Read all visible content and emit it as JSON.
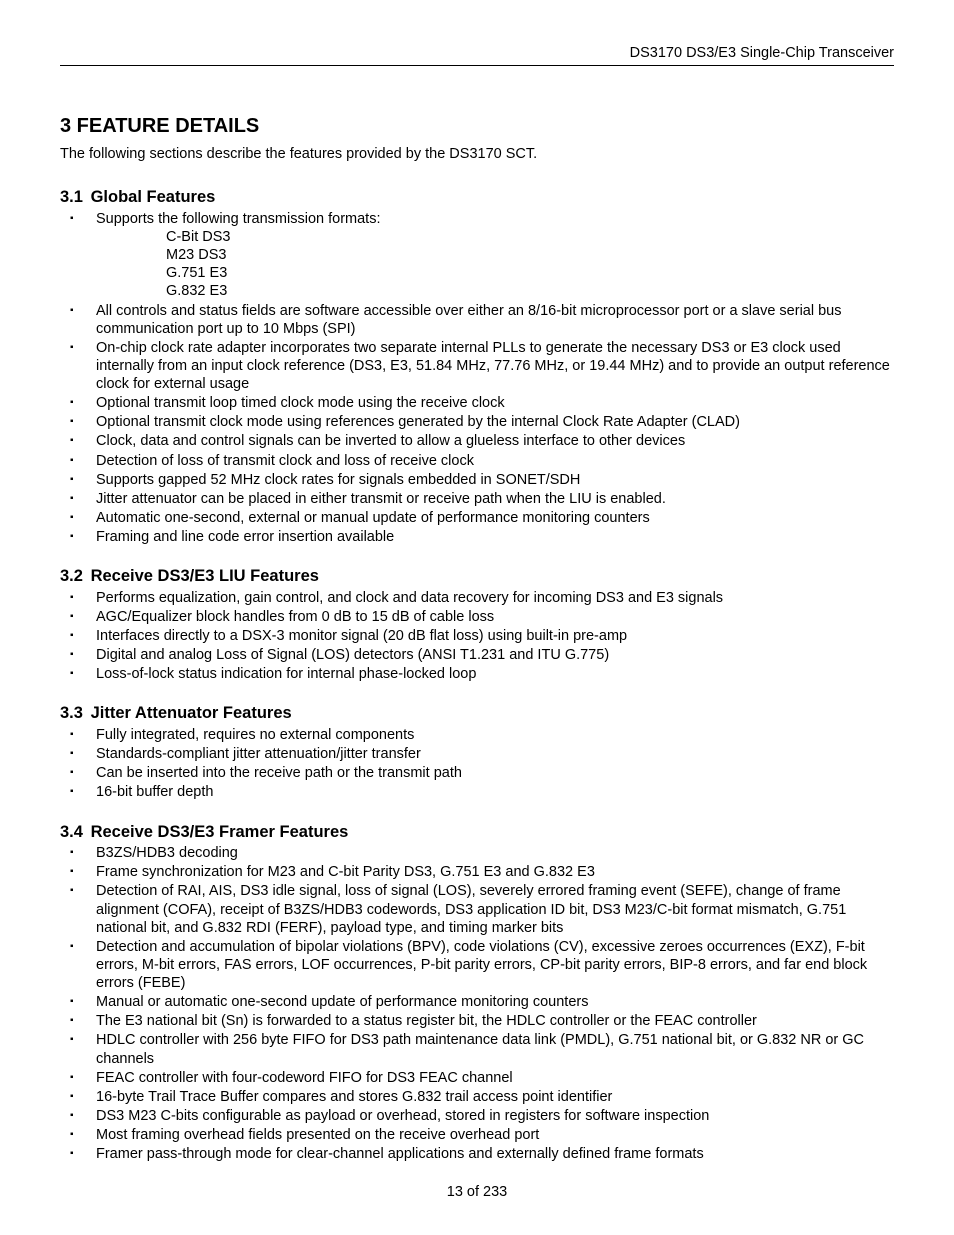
{
  "header": "DS3170 DS3/E3 Single-Chip Transceiver",
  "title": "3  FEATURE DETAILS",
  "intro": "The following sections describe the features provided by the DS3170 SCT.",
  "sections": [
    {
      "num": "3.1",
      "title": "Global Features",
      "items": [
        "Supports the following transmission formats:",
        "All controls and status fields are software accessible over either an 8/16-bit microprocessor port or a slave serial bus communication port up to 10 Mbps (SPI)",
        "On-chip clock rate adapter incorporates two separate internal PLLs to generate the necessary DS3 or E3 clock used internally from an input clock reference (DS3, E3, 51.84 MHz, 77.76 MHz, or 19.44 MHz) and to provide an output reference clock for external usage",
        "Optional transmit loop timed clock mode using the receive clock",
        "Optional transmit clock mode using references generated by the internal Clock Rate Adapter (CLAD)",
        "Clock, data and control signals can be inverted to allow a glueless interface to other devices",
        "Detection of loss of transmit clock and loss of receive clock",
        "Supports gapped 52 MHz clock rates for signals embedded in SONET/SDH",
        "Jitter attenuator can be placed in either transmit or receive path when the LIU is enabled.",
        "Automatic one-second, external or manual update of performance monitoring counters",
        "Framing and line code error insertion available"
      ],
      "subitems": [
        "C-Bit DS3",
        "M23 DS3",
        "G.751 E3",
        "G.832 E3"
      ]
    },
    {
      "num": "3.2",
      "title": "Receive DS3/E3 LIU Features",
      "items": [
        "Performs equalization, gain control, and clock and data recovery for incoming DS3 and E3 signals",
        "AGC/Equalizer block handles from 0 dB to 15 dB of cable loss",
        "Interfaces directly to a DSX-3 monitor signal (20 dB flat loss) using built-in pre-amp",
        "Digital and analog Loss of Signal (LOS) detectors (ANSI T1.231 and ITU G.775)",
        "Loss-of-lock status indication for internal phase-locked loop"
      ]
    },
    {
      "num": "3.3",
      "title": "Jitter Attenuator Features",
      "items": [
        "Fully integrated, requires no external components",
        "Standards-compliant jitter attenuation/jitter transfer",
        "Can be inserted into the receive path or the transmit path",
        "16-bit buffer depth"
      ]
    },
    {
      "num": "3.4",
      "title": "Receive DS3/E3 Framer Features",
      "items": [
        "B3ZS/HDB3 decoding",
        "Frame synchronization for M23 and C-bit Parity DS3, G.751 E3 and G.832 E3",
        "Detection of RAI, AIS, DS3 idle signal, loss of signal (LOS), severely errored framing event (SEFE), change of frame alignment (COFA), receipt of B3ZS/HDB3 codewords, DS3 application ID bit, DS3 M23/C-bit format mismatch, G.751 national bit, and G.832 RDI (FERF), payload type, and timing marker bits",
        "Detection and accumulation of bipolar violations (BPV), code violations (CV), excessive zeroes occurrences (EXZ), F-bit errors, M-bit errors, FAS errors, LOF occurrences, P-bit parity errors, CP-bit parity errors, BIP-8 errors, and far end block errors (FEBE)",
        "Manual or automatic one-second update of performance monitoring counters",
        "The E3 national bit (Sn) is forwarded to a status register bit, the HDLC controller or the FEAC controller",
        "HDLC controller with 256 byte FIFO for DS3 path maintenance data link (PMDL), G.751 national bit, or G.832 NR or GC channels",
        "FEAC controller with four-codeword FIFO for DS3 FEAC channel",
        "16-byte Trail Trace Buffer compares and stores G.832 trail access point identifier",
        "DS3 M23 C-bits configurable as payload or overhead, stored in registers for software inspection",
        "Most framing overhead fields presented on the receive overhead port",
        "Framer pass-through mode for clear-channel applications and externally defined frame formats"
      ]
    }
  ],
  "footer": "13 of 233"
}
